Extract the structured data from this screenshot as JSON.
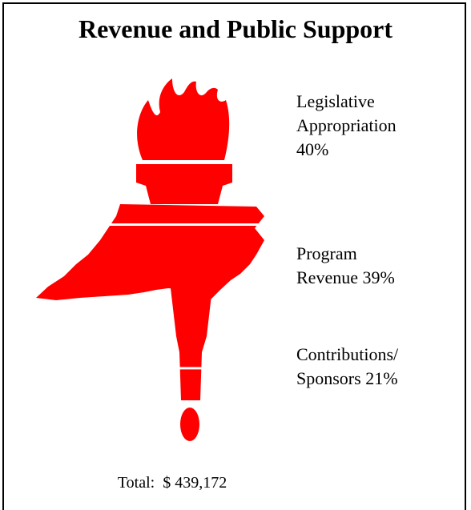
{
  "chart_data": {
    "type": "pictorial",
    "title": "Revenue and Public Support",
    "categories": [
      "Legislative Appropriation",
      "Program Revenue",
      "Contributions/ Sponsors"
    ],
    "values": [
      40,
      39,
      21
    ],
    "value_labels": [
      "40%",
      "39%",
      "21%"
    ],
    "color": "#ff0000",
    "total": {
      "label": "Total:",
      "value": 439172,
      "value_label": "$ 439,172"
    }
  }
}
